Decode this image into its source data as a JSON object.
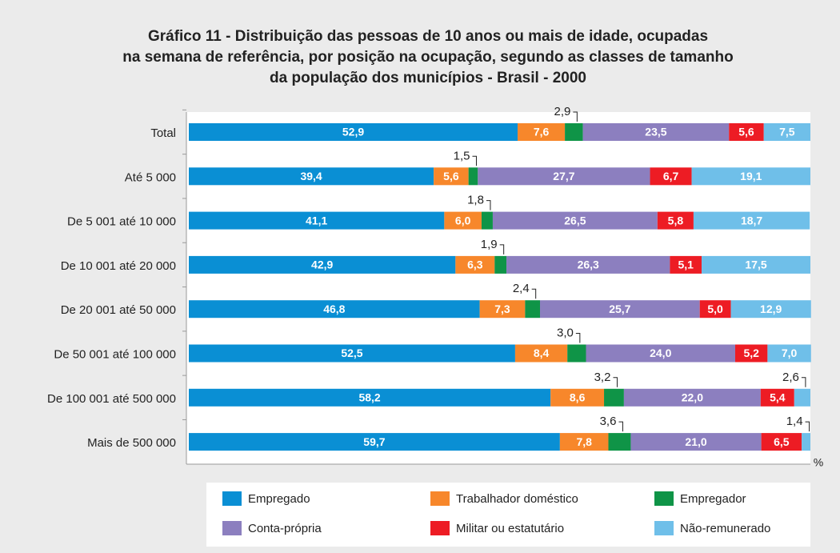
{
  "chart_data": {
    "type": "stacked_barh",
    "title": [
      "Gráfico 11 - Distribuição das pessoas de 10 anos ou mais de idade, ocupadas",
      "na semana de referência, por posição na ocupação, segundo as classes de tamanho",
      "da população dos municípios - Brasil - 2000"
    ],
    "x_label": "%",
    "xlim": [
      0,
      100
    ],
    "categories": [
      "Total",
      "Até 5 000",
      "De 5 001 até 10 000",
      "De 10 001 até 20 000",
      "De 20 001 até 50 000",
      "De 50 001 até 100 000",
      "De 100 001 até 500 000",
      "Mais de 500 000"
    ],
    "series": [
      {
        "name": "Empregado",
        "color": "#0a8fd4",
        "values": [
          52.9,
          39.4,
          41.1,
          42.9,
          46.8,
          52.5,
          58.2,
          59.7
        ],
        "value_labels": [
          "52,9",
          "39,4",
          "41,1",
          "42,9",
          "46,8",
          "52,5",
          "58,2",
          "59,7"
        ]
      },
      {
        "name": "Trabalhador doméstico",
        "color": "#f7872b",
        "values": [
          7.6,
          5.6,
          6.0,
          6.3,
          7.3,
          8.4,
          8.6,
          7.8
        ],
        "value_labels": [
          "7,6",
          "5,6",
          "6,0",
          "6,3",
          "7,3",
          "8,4",
          "8,6",
          "7,8"
        ]
      },
      {
        "name": "Empregador",
        "color": "#0f9447",
        "values": [
          2.9,
          1.5,
          1.8,
          1.9,
          2.4,
          3.0,
          3.2,
          3.6
        ],
        "value_labels": [
          "2,9",
          "1,5",
          "1,8",
          "1,9",
          "2,4",
          "3,0",
          "3,2",
          "3,6"
        ]
      },
      {
        "name": "Conta-própria",
        "color": "#8c7fbf",
        "values": [
          23.5,
          27.7,
          26.5,
          26.3,
          25.7,
          24.0,
          22.0,
          21.0
        ],
        "value_labels": [
          "23,5",
          "27,7",
          "26,5",
          "26,3",
          "25,7",
          "24,0",
          "22,0",
          "21,0"
        ]
      },
      {
        "name": "Militar ou estatutário",
        "color": "#ed1c24",
        "values": [
          5.6,
          6.7,
          5.8,
          5.1,
          5.0,
          5.2,
          5.4,
          6.5
        ],
        "value_labels": [
          "5,6",
          "6,7",
          "5,8",
          "5,1",
          "5,0",
          "5,2",
          "5,4",
          "6,5"
        ]
      },
      {
        "name": "Não-remunerado",
        "color": "#6fbfe9",
        "values": [
          7.5,
          19.1,
          18.7,
          17.5,
          12.9,
          7.0,
          2.6,
          1.4
        ],
        "value_labels": [
          "7,5",
          "19,1",
          "18,7",
          "17,5",
          "12,9",
          "7,0",
          "2,6",
          "1,4"
        ]
      }
    ]
  }
}
